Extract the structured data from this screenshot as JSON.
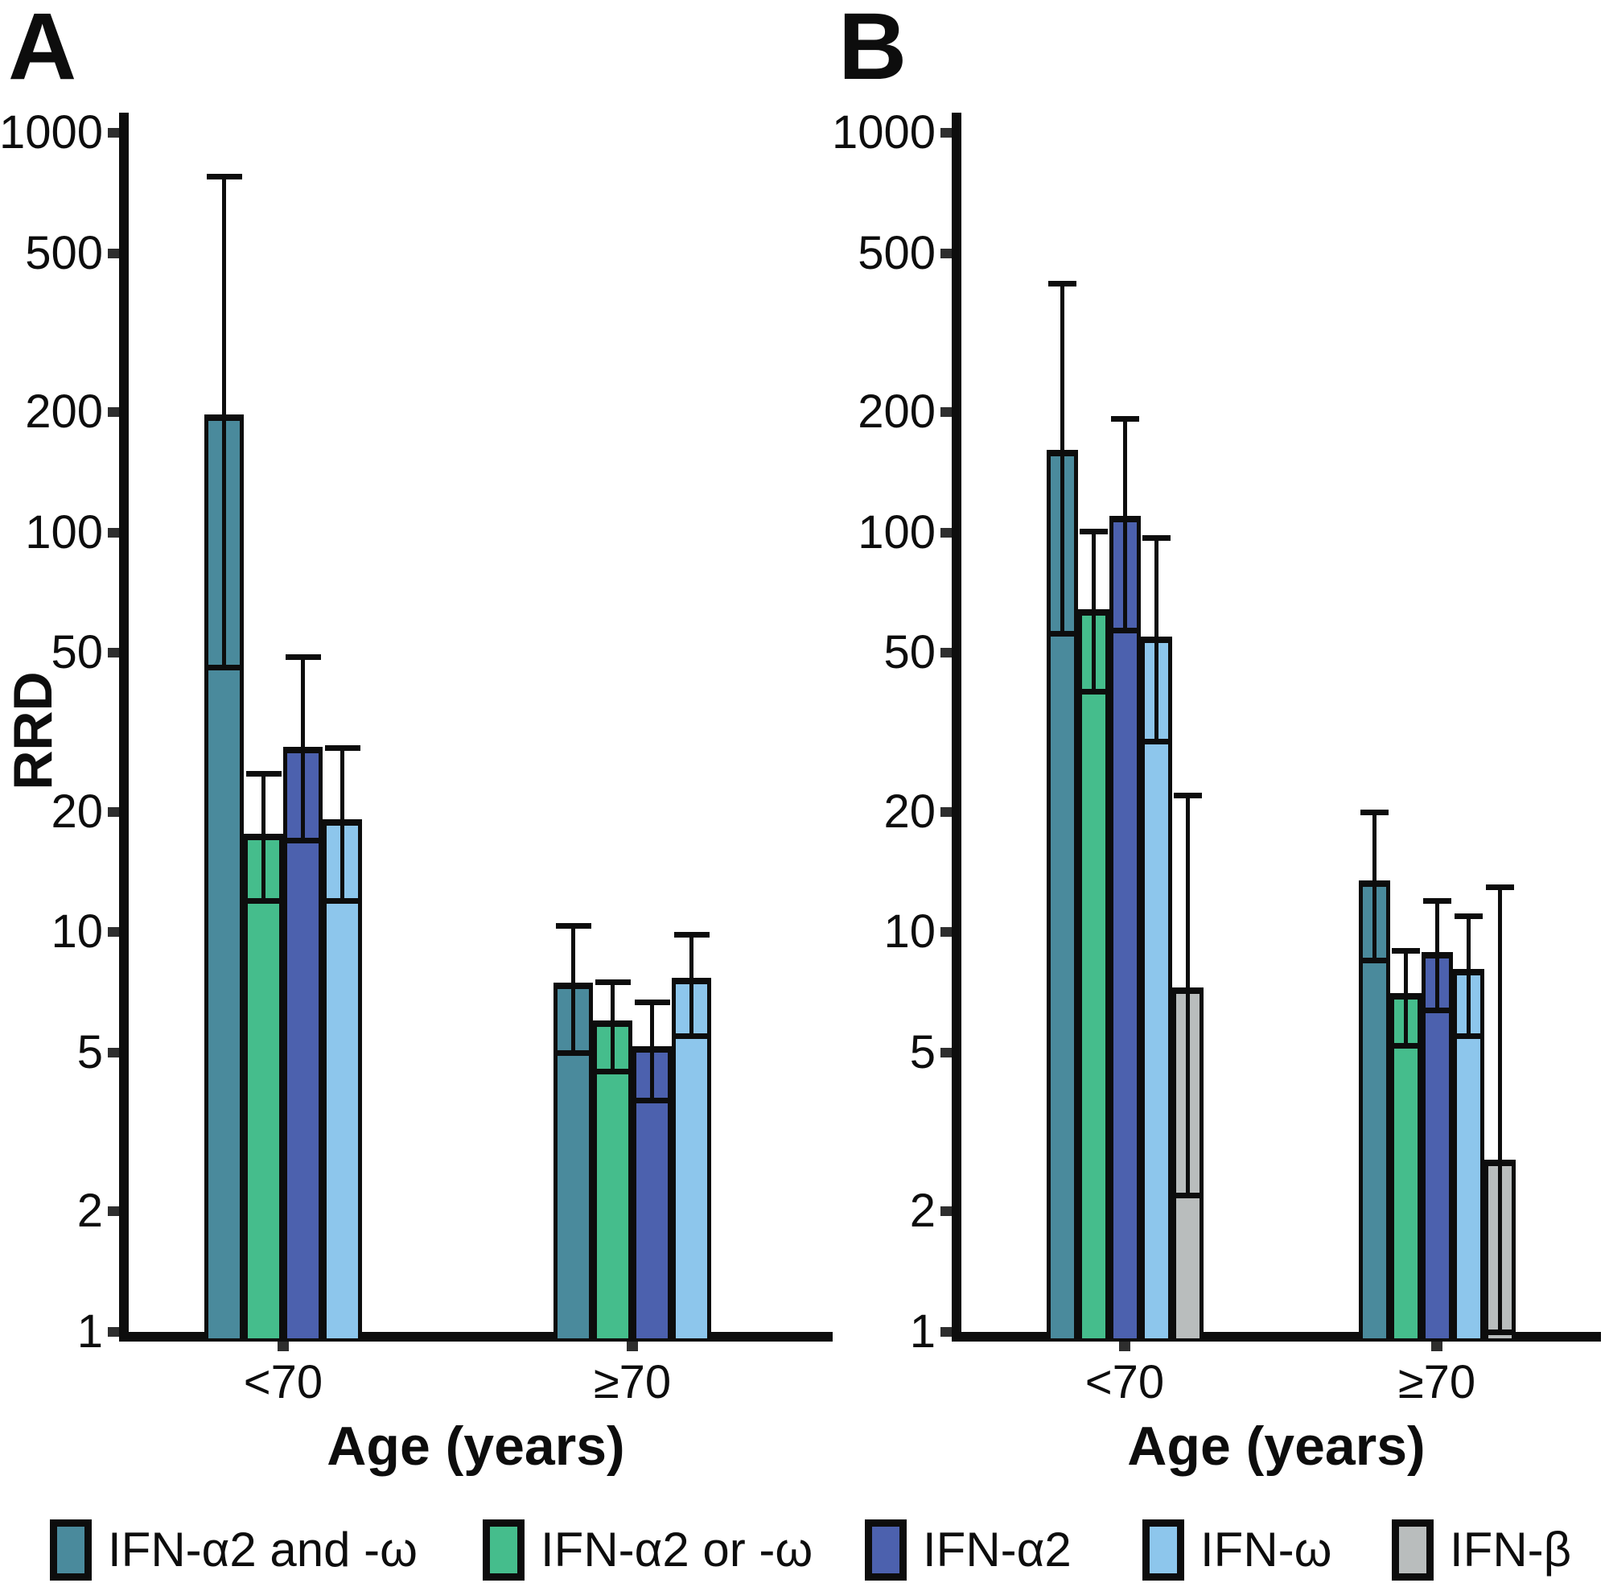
{
  "figure": {
    "y_axis_title": "RRD",
    "x_axis_title": "Age (years)"
  },
  "chart_data": [
    {
      "type": "bar",
      "panel_label": "A",
      "ylabel": "RRD",
      "xlabel": "Age (years)",
      "yscale": "log",
      "ylim": [
        1,
        1000
      ],
      "yticks": [
        1000,
        500,
        200,
        100,
        50,
        20,
        10,
        5,
        2,
        1
      ],
      "grid": false,
      "error_bars": true,
      "categories": [
        "<70",
        "≥70"
      ],
      "series": [
        {
          "name": "IFN-α2 and -ω",
          "color": "#4A8A9C",
          "values": [
            190,
            7.2
          ],
          "ci_low": [
            46,
            5.0
          ],
          "ci_high": [
            780,
            10.4
          ]
        },
        {
          "name": "IFN-α2 or -ω",
          "color": "#45BD8C",
          "values": [
            17,
            5.8
          ],
          "ci_low": [
            12,
            4.5
          ],
          "ci_high": [
            25,
            7.5
          ]
        },
        {
          "name": "IFN-α2",
          "color": "#4C61AE",
          "values": [
            28,
            5.0
          ],
          "ci_low": [
            17,
            3.8
          ],
          "ci_high": [
            49,
            6.7
          ]
        },
        {
          "name": "IFN-ω",
          "color": "#8DC6EC",
          "values": [
            18.5,
            7.4
          ],
          "ci_low": [
            12,
            5.5
          ],
          "ci_high": [
            29,
            9.9
          ]
        }
      ]
    },
    {
      "type": "bar",
      "panel_label": "B",
      "ylabel": "",
      "xlabel": "Age (years)",
      "yscale": "log",
      "ylim": [
        1,
        1000
      ],
      "yticks": [
        1000,
        500,
        200,
        100,
        50,
        20,
        10,
        5,
        2,
        1
      ],
      "grid": false,
      "error_bars": true,
      "categories": [
        "<70",
        "≥70"
      ],
      "series": [
        {
          "name": "IFN-α2 and -ω",
          "color": "#4A8A9C",
          "values": [
            155,
            13
          ],
          "ci_low": [
            56,
            8.5
          ],
          "ci_high": [
            420,
            20
          ]
        },
        {
          "name": "IFN-α2 or -ω",
          "color": "#45BD8C",
          "values": [
            62,
            6.8
          ],
          "ci_low": [
            40,
            5.2
          ],
          "ci_high": [
            101,
            9.0
          ]
        },
        {
          "name": "IFN-α2",
          "color": "#4C61AE",
          "values": [
            106,
            8.6
          ],
          "ci_low": [
            57,
            6.4
          ],
          "ci_high": [
            193,
            12
          ]
        },
        {
          "name": "IFN-ω",
          "color": "#8DC6EC",
          "values": [
            53,
            7.8
          ],
          "ci_low": [
            30,
            5.5
          ],
          "ci_high": [
            97,
            11
          ]
        },
        {
          "name": "IFN-β",
          "color": "#B9BDBD",
          "values": [
            7.0,
            2.6
          ],
          "ci_low": [
            2.2,
            1.0
          ],
          "ci_high": [
            22,
            13
          ]
        }
      ]
    }
  ],
  "legend": {
    "position": "bottom",
    "items": [
      {
        "label": "IFN-α2 and -ω",
        "color": "#4A8A9C"
      },
      {
        "label": "IFN-α2 or -ω",
        "color": "#45BD8C"
      },
      {
        "label": "IFN-α2",
        "color": "#4C61AE"
      },
      {
        "label": "IFN-ω",
        "color": "#8DC6EC"
      },
      {
        "label": "IFN-β",
        "color": "#B9BDBD"
      }
    ]
  },
  "colors": {
    "axis": "#0d0d0d",
    "background": "#ffffff",
    "teal": "#4A8A9C",
    "green": "#45BD8C",
    "blue": "#4C61AE",
    "light_blue": "#8DC6EC",
    "gray": "#B9BDBD"
  }
}
